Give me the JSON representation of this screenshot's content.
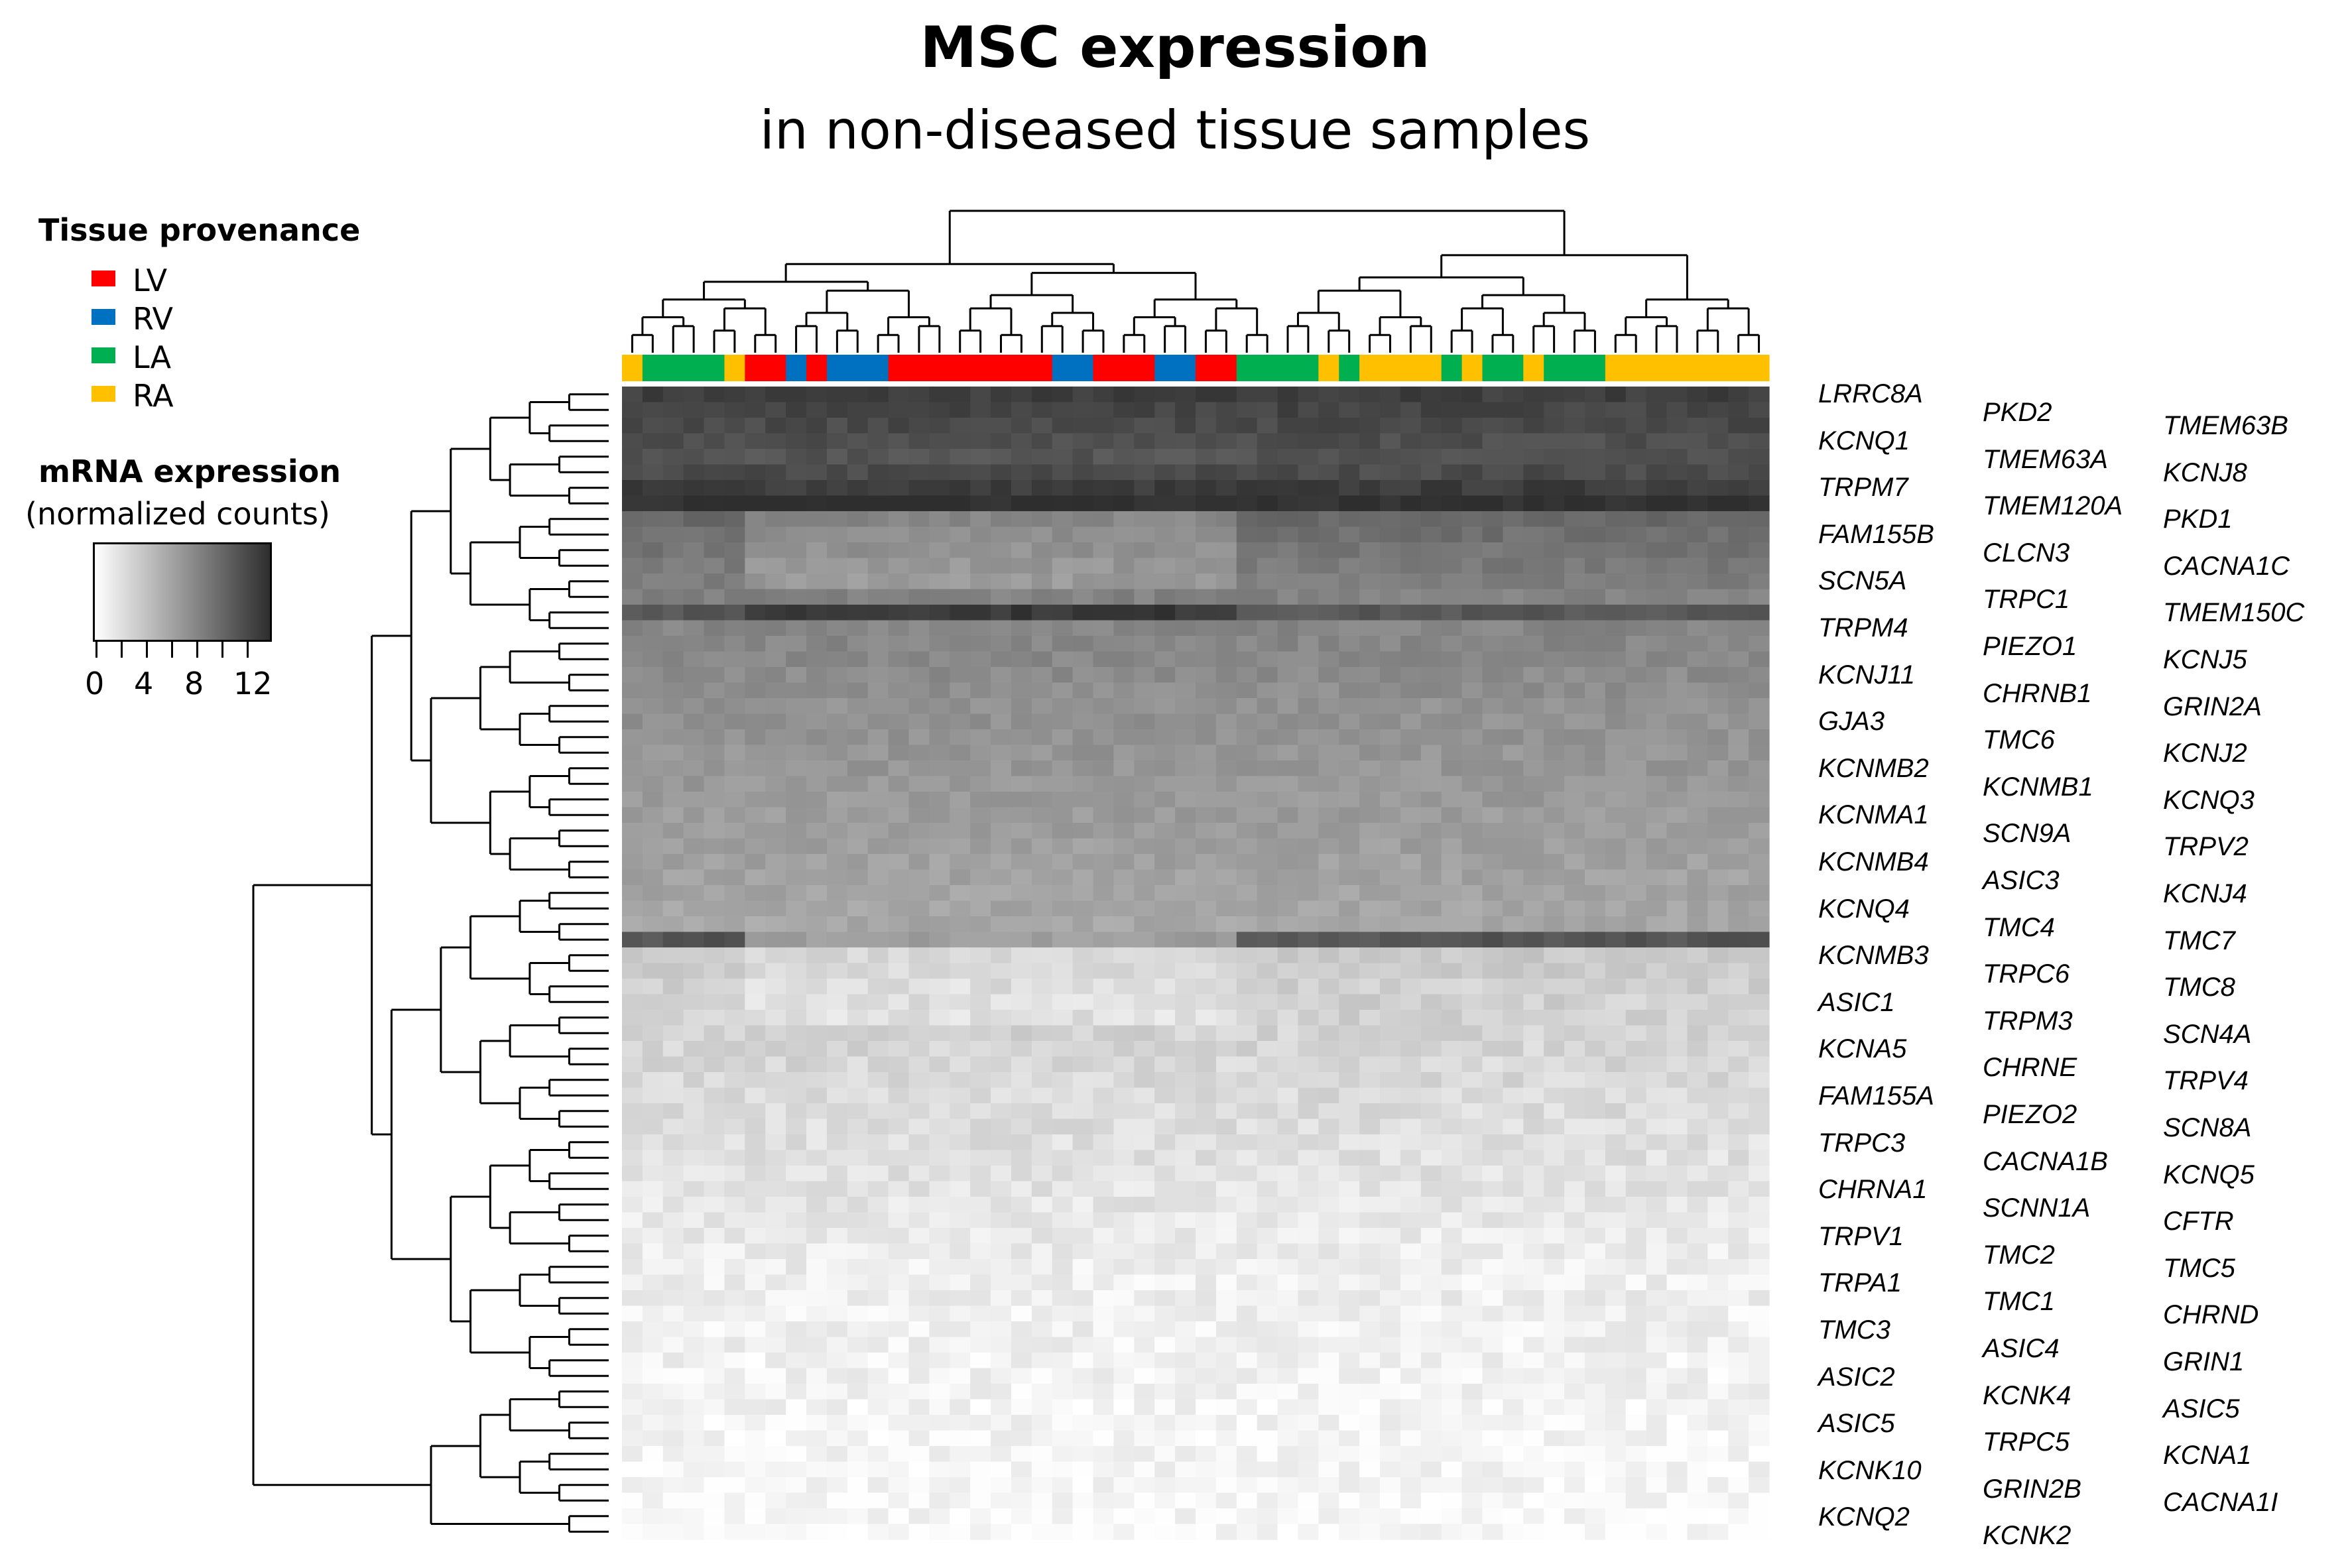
{
  "title": "MSC expression",
  "subtitle": "in non-diseased tissue samples",
  "legend": {
    "provenance_title": "Tissue provenance",
    "provenance": [
      {
        "label": "LV",
        "color": "#ff0000"
      },
      {
        "label": "RV",
        "color": "#0070c0"
      },
      {
        "label": "LA",
        "color": "#00b050"
      },
      {
        "label": "RA",
        "color": "#ffc000"
      }
    ],
    "expression_title": "mRNA expression",
    "expression_subtitle": "(normalized counts)",
    "scale_ticks": [
      "0",
      "4",
      "8",
      "12"
    ],
    "scale_min": 0,
    "scale_max": 13,
    "scale_colors": [
      "#ffffff",
      "#2e2e2e"
    ]
  },
  "chart_data": {
    "type": "heatmap",
    "sample_provenance": [
      "RA",
      "LA",
      "LA",
      "LA",
      "LA",
      "RA",
      "LV",
      "LV",
      "RV",
      "LV",
      "RV",
      "RV",
      "RV",
      "LV",
      "LV",
      "LV",
      "LV",
      "LV",
      "LV",
      "LV",
      "LV",
      "RV",
      "RV",
      "LV",
      "LV",
      "LV",
      "RV",
      "RV",
      "LV",
      "LV",
      "LA",
      "LA",
      "LA",
      "LA",
      "RA",
      "LA",
      "RA",
      "RA",
      "RA",
      "RA",
      "LA",
      "RA",
      "LA",
      "LA",
      "RA",
      "LA",
      "LA",
      "LA",
      "RA",
      "RA",
      "RA",
      "RA",
      "RA",
      "RA",
      "RA",
      "RA"
    ],
    "gene_columns": [
      [
        "LRRC8A",
        "KCNQ1",
        "TRPM7",
        "FAM155B",
        "SCN5A",
        "TRPM4",
        "KCNJ11",
        "GJA3",
        "KCNMB2",
        "KCNMA1",
        "KCNMB4",
        "KCNQ4",
        "KCNMB3",
        "ASIC1",
        "KCNA5",
        "FAM155A",
        "TRPC3",
        "CHRNA1",
        "TRPV1",
        "TRPA1",
        "TMC3",
        "ASIC2",
        "ASIC5",
        "KCNK10",
        "KCNQ2"
      ],
      [
        "PKD2",
        "TMEM63A",
        "TMEM120A",
        "CLCN3",
        "TRPC1",
        "PIEZO1",
        "CHRNB1",
        "TMC6",
        "KCNMB1",
        "SCN9A",
        "ASIC3",
        "TMC4",
        "TRPC6",
        "TRPM3",
        "CHRNE",
        "PIEZO2",
        "CACNA1B",
        "SCNN1A",
        "TMC2",
        "TMC1",
        "ASIC4",
        "KCNK4",
        "TRPC5",
        "GRIN2B",
        "KCNK2"
      ],
      [
        "TMEM63B",
        "KCNJ8",
        "PKD1",
        "CACNA1C",
        "TMEM150C",
        "KCNJ5",
        "GRIN2A",
        "KCNJ2",
        "KCNQ3",
        "TRPV2",
        "KCNJ4",
        "TMC7",
        "TMC8",
        "SCN4A",
        "TRPV4",
        "SCN8A",
        "KCNQ5",
        "CFTR",
        "TMC5",
        "CHRND",
        "GRIN1",
        "ASIC5",
        "KCNA1",
        "CACNA1I"
      ]
    ],
    "row_mean_expression": [
      12,
      11.6,
      11.3,
      11,
      10.6,
      11.2,
      12.1,
      13,
      9.3,
      8.9,
      8.6,
      8.3,
      8.1,
      7.8,
      10.4,
      7.6,
      7.5,
      7.4,
      7.2,
      7,
      6.8,
      6.8,
      6.7,
      6.6,
      6.5,
      6.4,
      6.3,
      6.2,
      6.1,
      6,
      5.9,
      5.8,
      5.7,
      5.6,
      5.5,
      10.6,
      3.4,
      3.2,
      3,
      2.9,
      2.8,
      2.7,
      2.6,
      2.5,
      2.4,
      2.3,
      2.2,
      2.1,
      2,
      1.9,
      1.8,
      1.7,
      1.6,
      1.4,
      1.3,
      1.2,
      1.1,
      1,
      1,
      0.9,
      0.9,
      0.9,
      0.8,
      0.8,
      0.8,
      0.7,
      0.7,
      0.6,
      0.6,
      0.6,
      0.5,
      0.5,
      0.5,
      0.4
    ]
  }
}
